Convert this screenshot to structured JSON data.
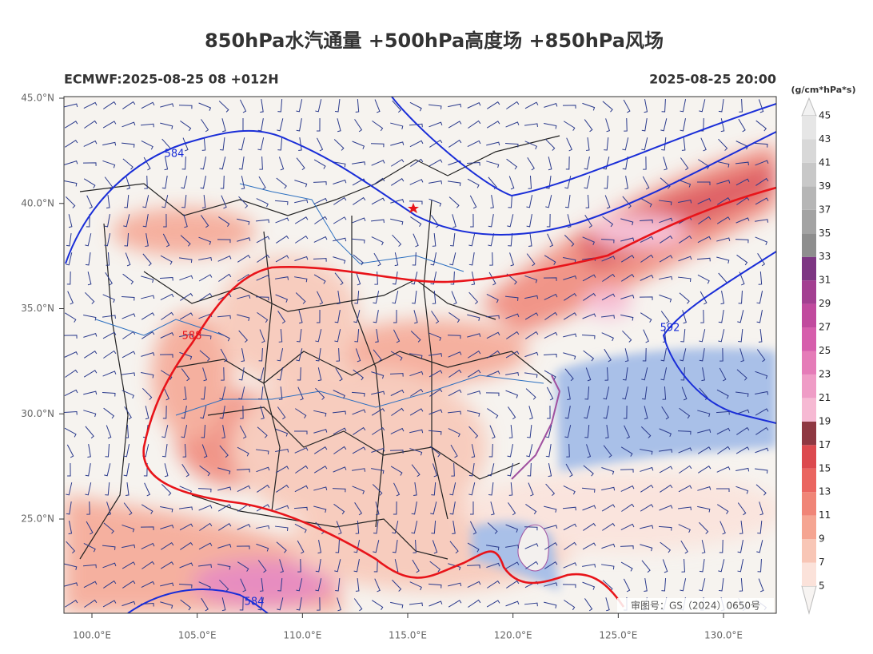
{
  "header": {
    "title": "850hPa水汽通量 +500hPa高度场 +850hPa风场",
    "left": "ECMWF:2025-08-25 08 +012H",
    "right": "2025-08-25 20:00"
  },
  "colorbar": {
    "unit": "(g/cm*hPa*s)",
    "levels": [
      5,
      7,
      9,
      11,
      13,
      15,
      17,
      19,
      21,
      23,
      25,
      27,
      29,
      31,
      33,
      35,
      37,
      39,
      41,
      43,
      45
    ],
    "colors": [
      "#fbe2da",
      "#f8c6b6",
      "#f5a592",
      "#f08577",
      "#ea6560",
      "#dc4a4f",
      "#8f3842",
      "#f6b9d3",
      "#ef9cc6",
      "#e57cb8",
      "#d65eac",
      "#c14a9e",
      "#a33f91",
      "#7d3683",
      "#8e8e8e",
      "#a3a3a3",
      "#b6b6b6",
      "#c8c8c8",
      "#d8d8d8",
      "#e6e6e6"
    ]
  },
  "axes": {
    "x_labels": [
      "100.0°E",
      "105.0°E",
      "110.0°E",
      "115.0°E",
      "120.0°E",
      "125.0°E",
      "130.0°E"
    ],
    "y_labels": [
      "45.0°N",
      "40.0°N",
      "35.0°N",
      "30.0°N",
      "25.0°N"
    ]
  },
  "contours": [
    {
      "label": "584"
    },
    {
      "label": "588"
    },
    {
      "label": "592"
    },
    {
      "label": "584"
    }
  ],
  "watermark": "审图号：GS（2024）0650号"
}
